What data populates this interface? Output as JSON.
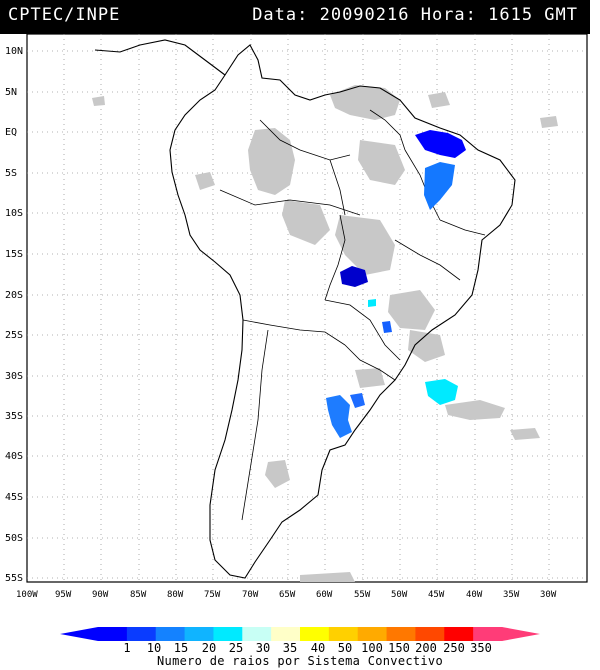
{
  "header": {
    "org": "CPTEC/INPE",
    "datetime": "Data: 20090216 Hora: 1615 GMT"
  },
  "map": {
    "lat_labels": [
      "10N",
      "5N",
      "EQ",
      "5S",
      "10S",
      "15S",
      "20S",
      "25S",
      "30S",
      "35S",
      "40S",
      "45S",
      "50S",
      "55S"
    ],
    "lon_labels": [
      "100W",
      "95W",
      "90W",
      "85W",
      "80W",
      "75W",
      "70W",
      "65W",
      "60W",
      "55W",
      "50W",
      "45W",
      "40W",
      "35W",
      "30W"
    ]
  },
  "colorbar": {
    "levels": [
      "1",
      "10",
      "15",
      "20",
      "25",
      "30",
      "35",
      "40",
      "50",
      "100",
      "150",
      "200",
      "250",
      "350"
    ],
    "colors": [
      "#0000ff",
      "#0a3cff",
      "#1482ff",
      "#10b4ff",
      "#00eaff",
      "#c8fff5",
      "#ffffc8",
      "#ffff00",
      "#ffd000",
      "#ffaa00",
      "#ff7800",
      "#ff4800",
      "#ff0000",
      "#ff3c78"
    ],
    "title": "Numero de raios por Sistema Convectivo"
  },
  "colors": {
    "cloud_gray": "#c8c8c8",
    "coast": "#000000"
  }
}
